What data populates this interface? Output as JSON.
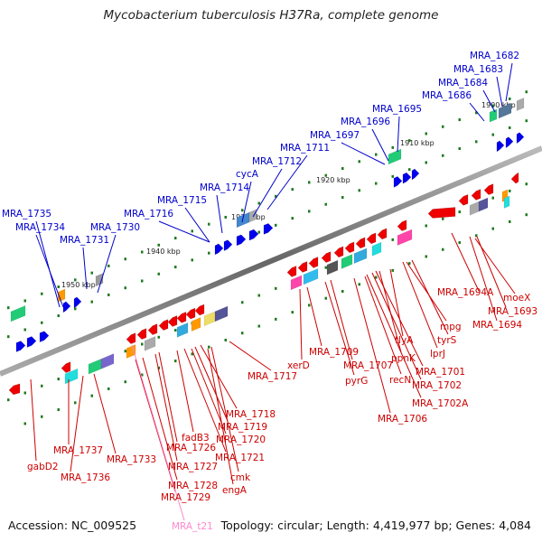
{
  "title": "Mycobacterium tuberculosis H37Ra, complete genome",
  "footer": {
    "accession": "Accession: NC_009525",
    "summary": "Topology: circular; Length: 4,419,977 bp; Genes: 4,084"
  },
  "colors": {
    "forward": "#0000ee",
    "reverse": "#ee0000",
    "rna": "#ff88cc",
    "backbone": "#777777",
    "dots": "#1f7a1f"
  },
  "position_ticks": [
    "1900 kbp",
    "1910 kbp",
    "1920 kbp",
    "1930 kbp",
    "1940 kbp",
    "1950 kbp"
  ],
  "forward_genes": [
    "MRA_1682",
    "MRA_1683",
    "MRA_1684",
    "MRA_1686",
    "MRA_1695",
    "MRA_1696",
    "MRA_1697",
    "MRA_1711",
    "MRA_1712",
    "cycA",
    "MRA_1714",
    "MRA_1715",
    "MRA_1716",
    "MRA_1735",
    "MRA_1734",
    "MRA_1731",
    "MRA_1730"
  ],
  "reverse_genes": [
    "MRA_1694A",
    "moeX",
    "MRA_1693",
    "MRA_1694",
    "mpg",
    "tyrS",
    "lprJ",
    "tlyA",
    "ppnK",
    "MRA_1701",
    "MRA_1702",
    "MRA_1702A",
    "recN",
    "MRA_1706",
    "MRA_1707",
    "pyrG",
    "MRA_1709",
    "xerD",
    "MRA_1717",
    "MRA_1718",
    "MRA_1719",
    "MRA_1720",
    "MRA_1721",
    "fadB3",
    "MRA_1726",
    "MRA_1727",
    "MRA_1728",
    "MRA_1729",
    "cmk",
    "engA",
    "gabD2",
    "MRA_1737",
    "MRA_1736",
    "MRA_1733"
  ],
  "rna_genes": [
    "MRA_t21"
  ]
}
